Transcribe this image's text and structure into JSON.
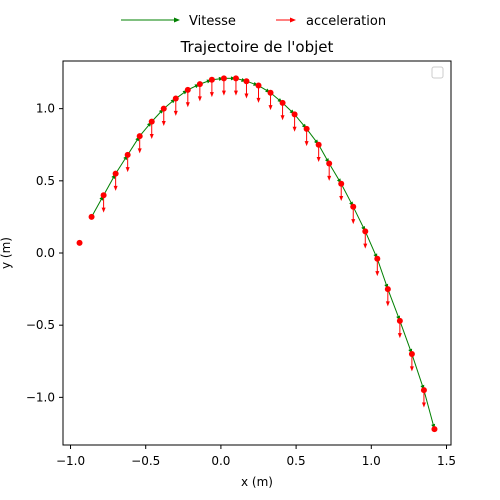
{
  "chart_data": {
    "type": "line",
    "title": "Trajectoire de l'objet",
    "xlabel": "x (m)",
    "ylabel": "y (m)",
    "xlim": [
      -1.05,
      1.53
    ],
    "ylim": [
      -1.33,
      1.33
    ],
    "xticks": [
      -1.0,
      -0.5,
      0.0,
      0.5,
      1.0,
      1.5
    ],
    "xtick_labels": [
      "−1.0",
      "−0.5",
      "0.0",
      "0.5",
      "1.0",
      "1.5"
    ],
    "yticks": [
      -1.0,
      -0.5,
      0.0,
      0.5,
      1.0
    ],
    "ytick_labels": [
      "−1.0",
      "−0.5",
      "0.0",
      "0.5",
      "1.0"
    ],
    "grid": false,
    "legend": {
      "placement": "top, above plot",
      "entries": [
        {
          "label": "Vitesse",
          "color": "#008000"
        },
        {
          "label": "acceleration",
          "color": "#ff0000"
        }
      ]
    },
    "colors": {
      "velocity": "#008000",
      "acceleration": "#ff0000",
      "points": "#ff0000"
    },
    "points": [
      {
        "x": -0.94,
        "y": 0.07
      },
      {
        "x": -0.86,
        "y": 0.25
      },
      {
        "x": -0.78,
        "y": 0.4
      },
      {
        "x": -0.7,
        "y": 0.55
      },
      {
        "x": -0.62,
        "y": 0.68
      },
      {
        "x": -0.54,
        "y": 0.81
      },
      {
        "x": -0.46,
        "y": 0.91
      },
      {
        "x": -0.38,
        "y": 1.0
      },
      {
        "x": -0.3,
        "y": 1.07
      },
      {
        "x": -0.22,
        "y": 1.13
      },
      {
        "x": -0.14,
        "y": 1.17
      },
      {
        "x": -0.06,
        "y": 1.2
      },
      {
        "x": 0.02,
        "y": 1.21
      },
      {
        "x": 0.1,
        "y": 1.21
      },
      {
        "x": 0.17,
        "y": 1.19
      },
      {
        "x": 0.25,
        "y": 1.16
      },
      {
        "x": 0.33,
        "y": 1.11
      },
      {
        "x": 0.41,
        "y": 1.04
      },
      {
        "x": 0.49,
        "y": 0.96
      },
      {
        "x": 0.57,
        "y": 0.86
      },
      {
        "x": 0.65,
        "y": 0.75
      },
      {
        "x": 0.72,
        "y": 0.62
      },
      {
        "x": 0.8,
        "y": 0.48
      },
      {
        "x": 0.88,
        "y": 0.32
      },
      {
        "x": 0.96,
        "y": 0.15
      },
      {
        "x": 1.04,
        "y": -0.04
      },
      {
        "x": 1.11,
        "y": -0.25
      },
      {
        "x": 1.19,
        "y": -0.47
      },
      {
        "x": 1.27,
        "y": -0.7
      },
      {
        "x": 1.35,
        "y": -0.95
      },
      {
        "x": 1.42,
        "y": -1.22
      }
    ],
    "velocity_path_start_index": 1,
    "acceleration": {
      "dx": 0.0,
      "dy": -0.12
    },
    "acceleration_start_index": 2,
    "acceleration_end_index": 29
  }
}
